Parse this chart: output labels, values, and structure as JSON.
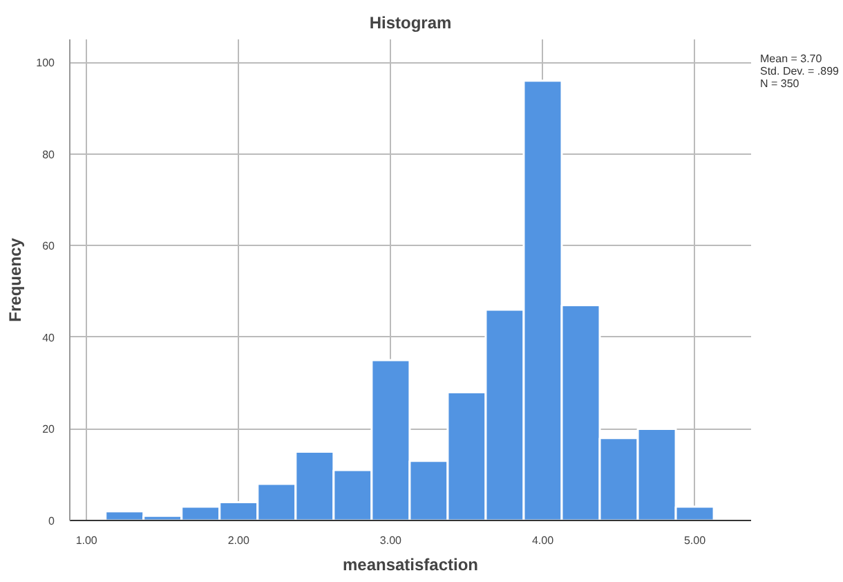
{
  "chart_data": {
    "type": "histogram",
    "title": "Histogram",
    "xlabel": "meansatisfaction",
    "ylabel": "Frequency",
    "bins": [
      1.125,
      1.375,
      1.625,
      1.875,
      2.125,
      2.375,
      2.625,
      2.875,
      3.125,
      3.375,
      3.625,
      3.875,
      4.125,
      4.375,
      4.625,
      4.875,
      5.125
    ],
    "values": [
      2,
      1,
      3,
      4,
      8,
      15,
      11,
      35,
      13,
      28,
      46,
      96,
      47,
      18,
      20,
      3
    ],
    "color": "#5294e2",
    "xlim": [
      0.89,
      5.37
    ],
    "ylim": [
      0,
      105
    ],
    "xticks": [
      {
        "value": 1,
        "label": "1.00"
      },
      {
        "value": 2,
        "label": "2.00"
      },
      {
        "value": 3,
        "label": "3.00"
      },
      {
        "value": 4,
        "label": "4.00"
      },
      {
        "value": 5,
        "label": "5.00"
      }
    ],
    "yticks": [
      0,
      20,
      40,
      60,
      80,
      100
    ],
    "grid": true,
    "annotations": [
      "Mean = 3.70",
      "Std. Dev. = .899",
      "N = 350"
    ]
  }
}
